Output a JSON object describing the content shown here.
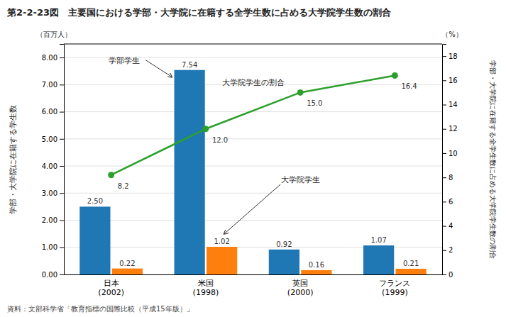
{
  "chart_data": {
    "type": "bar",
    "title": "第2-2-23図　主要国における学部・大学院に在籍する全学生数に占める大学院学生数の割合",
    "categories": [
      "日本\n(2002)",
      "米国\n(1998)",
      "英国\n(2000)",
      "フランス\n(1999)"
    ],
    "series": [
      {
        "name": "学部学生",
        "values": [
          2.5,
          7.54,
          0.92,
          1.07
        ],
        "value_labels": [
          "2.50",
          "7.54",
          "0.92",
          "1.07"
        ]
      },
      {
        "name": "大学院学生",
        "values": [
          0.22,
          1.02,
          0.16,
          0.21
        ],
        "value_labels": [
          "0.22",
          "1.02",
          "0.16",
          "0.21"
        ]
      },
      {
        "name": "大学院学生の割合",
        "type": "line",
        "marker": "circle",
        "axis": "y2",
        "values": [
          8.2,
          12.0,
          15.0,
          16.4
        ],
        "value_labels": [
          "8.2",
          "12.0",
          "15.0",
          "16.4"
        ]
      }
    ],
    "ylabel": "学部・大学院に在籍する学生数",
    "y2label": "学部・大学院に在籍する全学生数に占める大学院学生数の割合",
    "y_unit": "（百万人）",
    "y2_unit": "（%）",
    "source": "資料：文部科学省「教育指標の国際比較（平成15年版）」",
    "ylim": [
      0.0,
      8.5
    ],
    "yticks": [
      {
        "value": 0,
        "label": "0.00"
      },
      {
        "value": 1,
        "label": "1.00"
      },
      {
        "value": 2,
        "label": "2.00"
      },
      {
        "value": 3,
        "label": "3.00"
      },
      {
        "value": 4,
        "label": "4.00"
      },
      {
        "value": 5,
        "label": "5.00"
      },
      {
        "value": 6,
        "label": "6.00"
      },
      {
        "value": 7,
        "label": "7.00"
      },
      {
        "value": 8,
        "label": "8.00"
      }
    ],
    "y2lim": [
      0,
      19
    ],
    "y2ticks": [
      0,
      2,
      4,
      6,
      8,
      10,
      12,
      14,
      16,
      18
    ],
    "grid": true,
    "data_labels": true
  }
}
